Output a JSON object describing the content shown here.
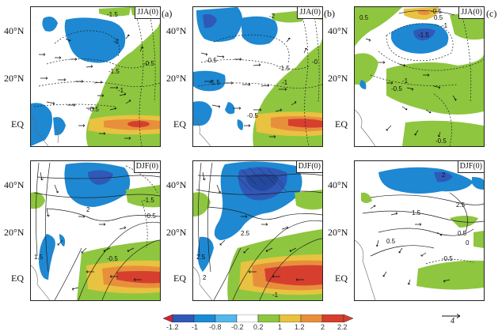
{
  "panel_labels": [
    "(a)",
    "(b)",
    "(c)"
  ],
  "latitude_labels": [
    "40°N",
    "20°N",
    "EQ"
  ],
  "seasons": {
    "summer": "JJA(0)",
    "winter": "DJF(0)"
  },
  "contours": {
    "a_top": [
      "-1.5",
      "-2",
      "-1.5",
      "-1",
      "-0.5",
      "-0.5"
    ],
    "b_top": [
      "-2",
      "-0.5",
      "-1.5",
      "-1.5",
      "-1",
      "-0.5",
      "-0"
    ],
    "c_top": [
      "0.5",
      "-0.5",
      "0.5",
      "-1.5",
      "-1",
      "-1",
      "-0.5",
      "-0.5"
    ],
    "a_bot": [
      "2",
      "-1.5",
      "-0.5",
      "1.5",
      "-0.5"
    ],
    "b_bot": [
      "2.5",
      "2.5",
      "2",
      "-1"
    ],
    "c_bot": [
      "2",
      "1.5",
      "2.5",
      "0.5",
      "0.5",
      "0",
      "-0.5"
    ]
  },
  "colorbar": {
    "ticks": [
      "-1.2",
      "-1",
      "-0.8",
      "-0.2",
      "0.2",
      "1",
      "1.2",
      "2",
      "2.2"
    ],
    "colors": [
      "#d0223a",
      "#2f58b8",
      "#1b8bd6",
      "#56b7ec",
      "#ffffff",
      "#8ec63f",
      "#e8c240",
      "#e88f3c",
      "#d63f2e"
    ]
  },
  "reference_vector": {
    "value": "4"
  }
}
